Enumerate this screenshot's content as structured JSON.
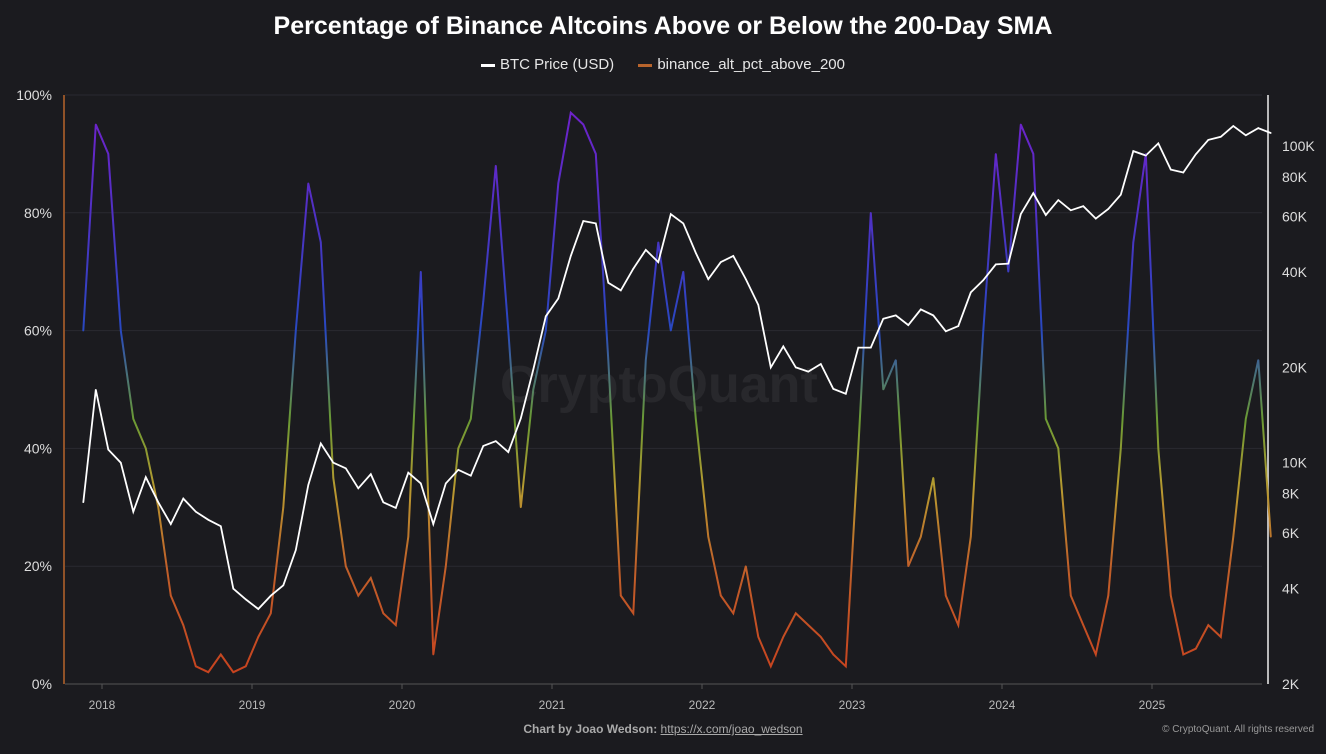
{
  "chart_data": {
    "type": "line",
    "title": "Percentage of Binance Altcoins Above or Below the 200-Day SMA",
    "legend_placement": "top",
    "grid": true,
    "x_ticks": [
      "2018",
      "2019",
      "2020",
      "2021",
      "2022",
      "2023",
      "2024",
      "2025"
    ],
    "y_left": {
      "ticks": [
        "0%",
        "20%",
        "40%",
        "60%",
        "80%",
        "100%"
      ],
      "range": [
        0,
        100
      ]
    },
    "y_right": {
      "scale": "log",
      "ticks": [
        "2K",
        "4K",
        "6K",
        "8K",
        "10K",
        "20K",
        "40K",
        "60K",
        "80K",
        "100K"
      ],
      "tick_values": [
        2000,
        4000,
        6000,
        8000,
        10000,
        20000,
        40000,
        60000,
        80000,
        100000
      ],
      "range": [
        2000,
        145000
      ]
    },
    "x": [
      "2017-11",
      "2017-12",
      "2018-01",
      "2018-02",
      "2018-03",
      "2018-04",
      "2018-05",
      "2018-06",
      "2018-07",
      "2018-08",
      "2018-09",
      "2018-10",
      "2018-11",
      "2018-12",
      "2019-01",
      "2019-02",
      "2019-03",
      "2019-04",
      "2019-05",
      "2019-06",
      "2019-07",
      "2019-08",
      "2019-09",
      "2019-10",
      "2019-11",
      "2019-12",
      "2020-01",
      "2020-02",
      "2020-03",
      "2020-04",
      "2020-05",
      "2020-06",
      "2020-07",
      "2020-08",
      "2020-09",
      "2020-10",
      "2020-11",
      "2020-12",
      "2021-01",
      "2021-02",
      "2021-03",
      "2021-04",
      "2021-05",
      "2021-06",
      "2021-07",
      "2021-08",
      "2021-09",
      "2021-10",
      "2021-11",
      "2021-12",
      "2022-01",
      "2022-02",
      "2022-03",
      "2022-04",
      "2022-05",
      "2022-06",
      "2022-07",
      "2022-08",
      "2022-09",
      "2022-10",
      "2022-11",
      "2022-12",
      "2023-01",
      "2023-02",
      "2023-03",
      "2023-04",
      "2023-05",
      "2023-06",
      "2023-07",
      "2023-08",
      "2023-09",
      "2023-10",
      "2023-11",
      "2023-12",
      "2024-01",
      "2024-02",
      "2024-03",
      "2024-04",
      "2024-05",
      "2024-06",
      "2024-07",
      "2024-08",
      "2024-09",
      "2024-10",
      "2024-11",
      "2024-12",
      "2025-01",
      "2025-02",
      "2025-03",
      "2025-04",
      "2025-05",
      "2025-06",
      "2025-07",
      "2025-08",
      "2025-09",
      "2025-10"
    ],
    "series": [
      {
        "name": "BTC Price (USD)",
        "axis": "right",
        "color": "#ffffff",
        "values": [
          7500,
          17000,
          11000,
          10000,
          7000,
          9000,
          7500,
          6400,
          7700,
          7000,
          6600,
          6300,
          4000,
          3700,
          3450,
          3800,
          4100,
          5300,
          8500,
          11500,
          10000,
          9600,
          8300,
          9200,
          7500,
          7200,
          9300,
          8600,
          6400,
          8600,
          9500,
          9100,
          11300,
          11700,
          10800,
          13800,
          19700,
          29000,
          33000,
          45000,
          58000,
          57000,
          37000,
          35000,
          41000,
          47000,
          43000,
          61000,
          57000,
          46000,
          38000,
          43000,
          45000,
          38000,
          31500,
          20000,
          23300,
          20000,
          19400,
          20500,
          17100,
          16500,
          23100,
          23100,
          28500,
          29200,
          27200,
          30500,
          29200,
          26000,
          27000,
          34500,
          37700,
          42300,
          42500,
          61000,
          71000,
          60600,
          67500,
          62700,
          64600,
          59000,
          63300,
          70200,
          96400,
          93400,
          102000,
          84300,
          82500,
          94200,
          104600,
          107000,
          115700,
          108200,
          114000,
          110000
        ]
      },
      {
        "name": "binance_alt_pct_above_200",
        "axis": "left",
        "color": "#c0602a",
        "values": [
          60,
          95,
          90,
          60,
          45,
          40,
          30,
          15,
          10,
          3,
          2,
          5,
          2,
          3,
          8,
          12,
          30,
          60,
          85,
          75,
          35,
          20,
          15,
          18,
          12,
          10,
          25,
          70,
          5,
          20,
          40,
          45,
          65,
          88,
          60,
          30,
          50,
          60,
          85,
          97,
          95,
          90,
          55,
          15,
          12,
          55,
          75,
          60,
          70,
          45,
          25,
          15,
          12,
          20,
          8,
          3,
          8,
          12,
          10,
          8,
          5,
          3,
          40,
          80,
          50,
          55,
          20,
          25,
          35,
          15,
          10,
          25,
          60,
          90,
          70,
          95,
          90,
          45,
          40,
          15,
          10,
          5,
          15,
          40,
          75,
          90,
          40,
          15,
          5,
          6,
          10,
          8,
          25,
          45,
          55,
          25
        ]
      }
    ]
  },
  "watermark": "CryptoQuant",
  "footer": {
    "credit": "Chart by Joao Wedson:",
    "link": "https://x.com/joao_wedson",
    "copyright": "© CryptoQuant. All rights reserved"
  }
}
